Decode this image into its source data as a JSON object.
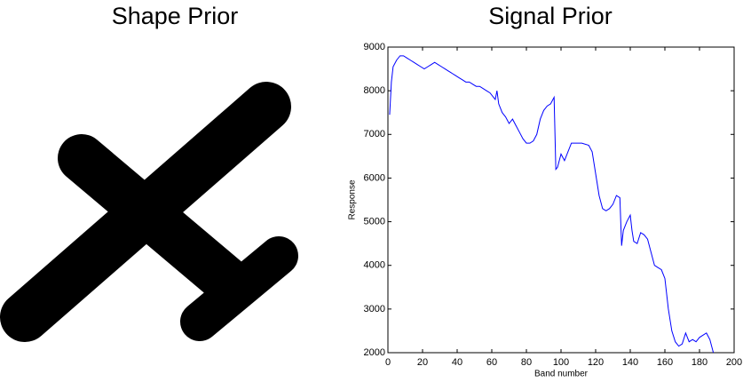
{
  "shape_panel": {
    "title": "Shape Prior"
  },
  "chart_data": {
    "type": "line",
    "title": "Signal Prior",
    "x_label": "Band number",
    "y_label": "Response",
    "color": "#0000ff",
    "x": [
      1,
      2,
      3,
      5,
      7,
      9,
      11,
      13,
      15,
      17,
      19,
      21,
      23,
      25,
      27,
      29,
      31,
      33,
      35,
      37,
      39,
      41,
      43,
      45,
      47,
      49,
      51,
      53,
      55,
      57,
      59,
      61,
      62,
      63,
      64,
      66,
      68,
      70,
      72,
      74,
      76,
      78,
      80,
      82,
      84,
      86,
      88,
      90,
      92,
      94,
      96,
      97,
      98,
      100,
      102,
      104,
      106,
      108,
      112,
      116,
      118,
      120,
      122,
      124,
      126,
      128,
      130,
      132,
      134,
      135,
      136,
      138,
      140,
      141,
      142,
      144,
      146,
      148,
      150,
      152,
      154,
      156,
      158,
      160,
      162,
      164,
      166,
      168,
      170,
      172,
      174,
      176,
      178,
      180,
      182,
      184,
      186,
      188
    ],
    "values": [
      7450,
      8200,
      8550,
      8700,
      8800,
      8800,
      8750,
      8700,
      8650,
      8600,
      8550,
      8500,
      8550,
      8600,
      8650,
      8600,
      8550,
      8500,
      8450,
      8400,
      8350,
      8300,
      8250,
      8200,
      8200,
      8150,
      8100,
      8100,
      8050,
      8000,
      7950,
      7850,
      7800,
      8000,
      7700,
      7500,
      7400,
      7250,
      7350,
      7200,
      7050,
      6900,
      6800,
      6800,
      6850,
      7000,
      7350,
      7550,
      7650,
      7700,
      7850,
      6200,
      6250,
      6550,
      6400,
      6600,
      6800,
      6800,
      6800,
      6750,
      6600,
      6100,
      5600,
      5300,
      5250,
      5300,
      5400,
      5600,
      5550,
      4450,
      4800,
      5000,
      5150,
      4800,
      4550,
      4500,
      4750,
      4700,
      4600,
      4300,
      4000,
      3950,
      3900,
      3700,
      3000,
      2500,
      2250,
      2150,
      2200,
      2450,
      2250,
      2300,
      2250,
      2350,
      2400,
      2450,
      2300,
      2000
    ],
    "xlim": [
      0,
      200
    ],
    "xticks": [
      0,
      20,
      40,
      60,
      80,
      100,
      120,
      140,
      160,
      180,
      200
    ],
    "ylim": [
      2000,
      9000
    ],
    "yticks": [
      2000,
      3000,
      4000,
      5000,
      6000,
      7000,
      8000,
      9000
    ]
  }
}
